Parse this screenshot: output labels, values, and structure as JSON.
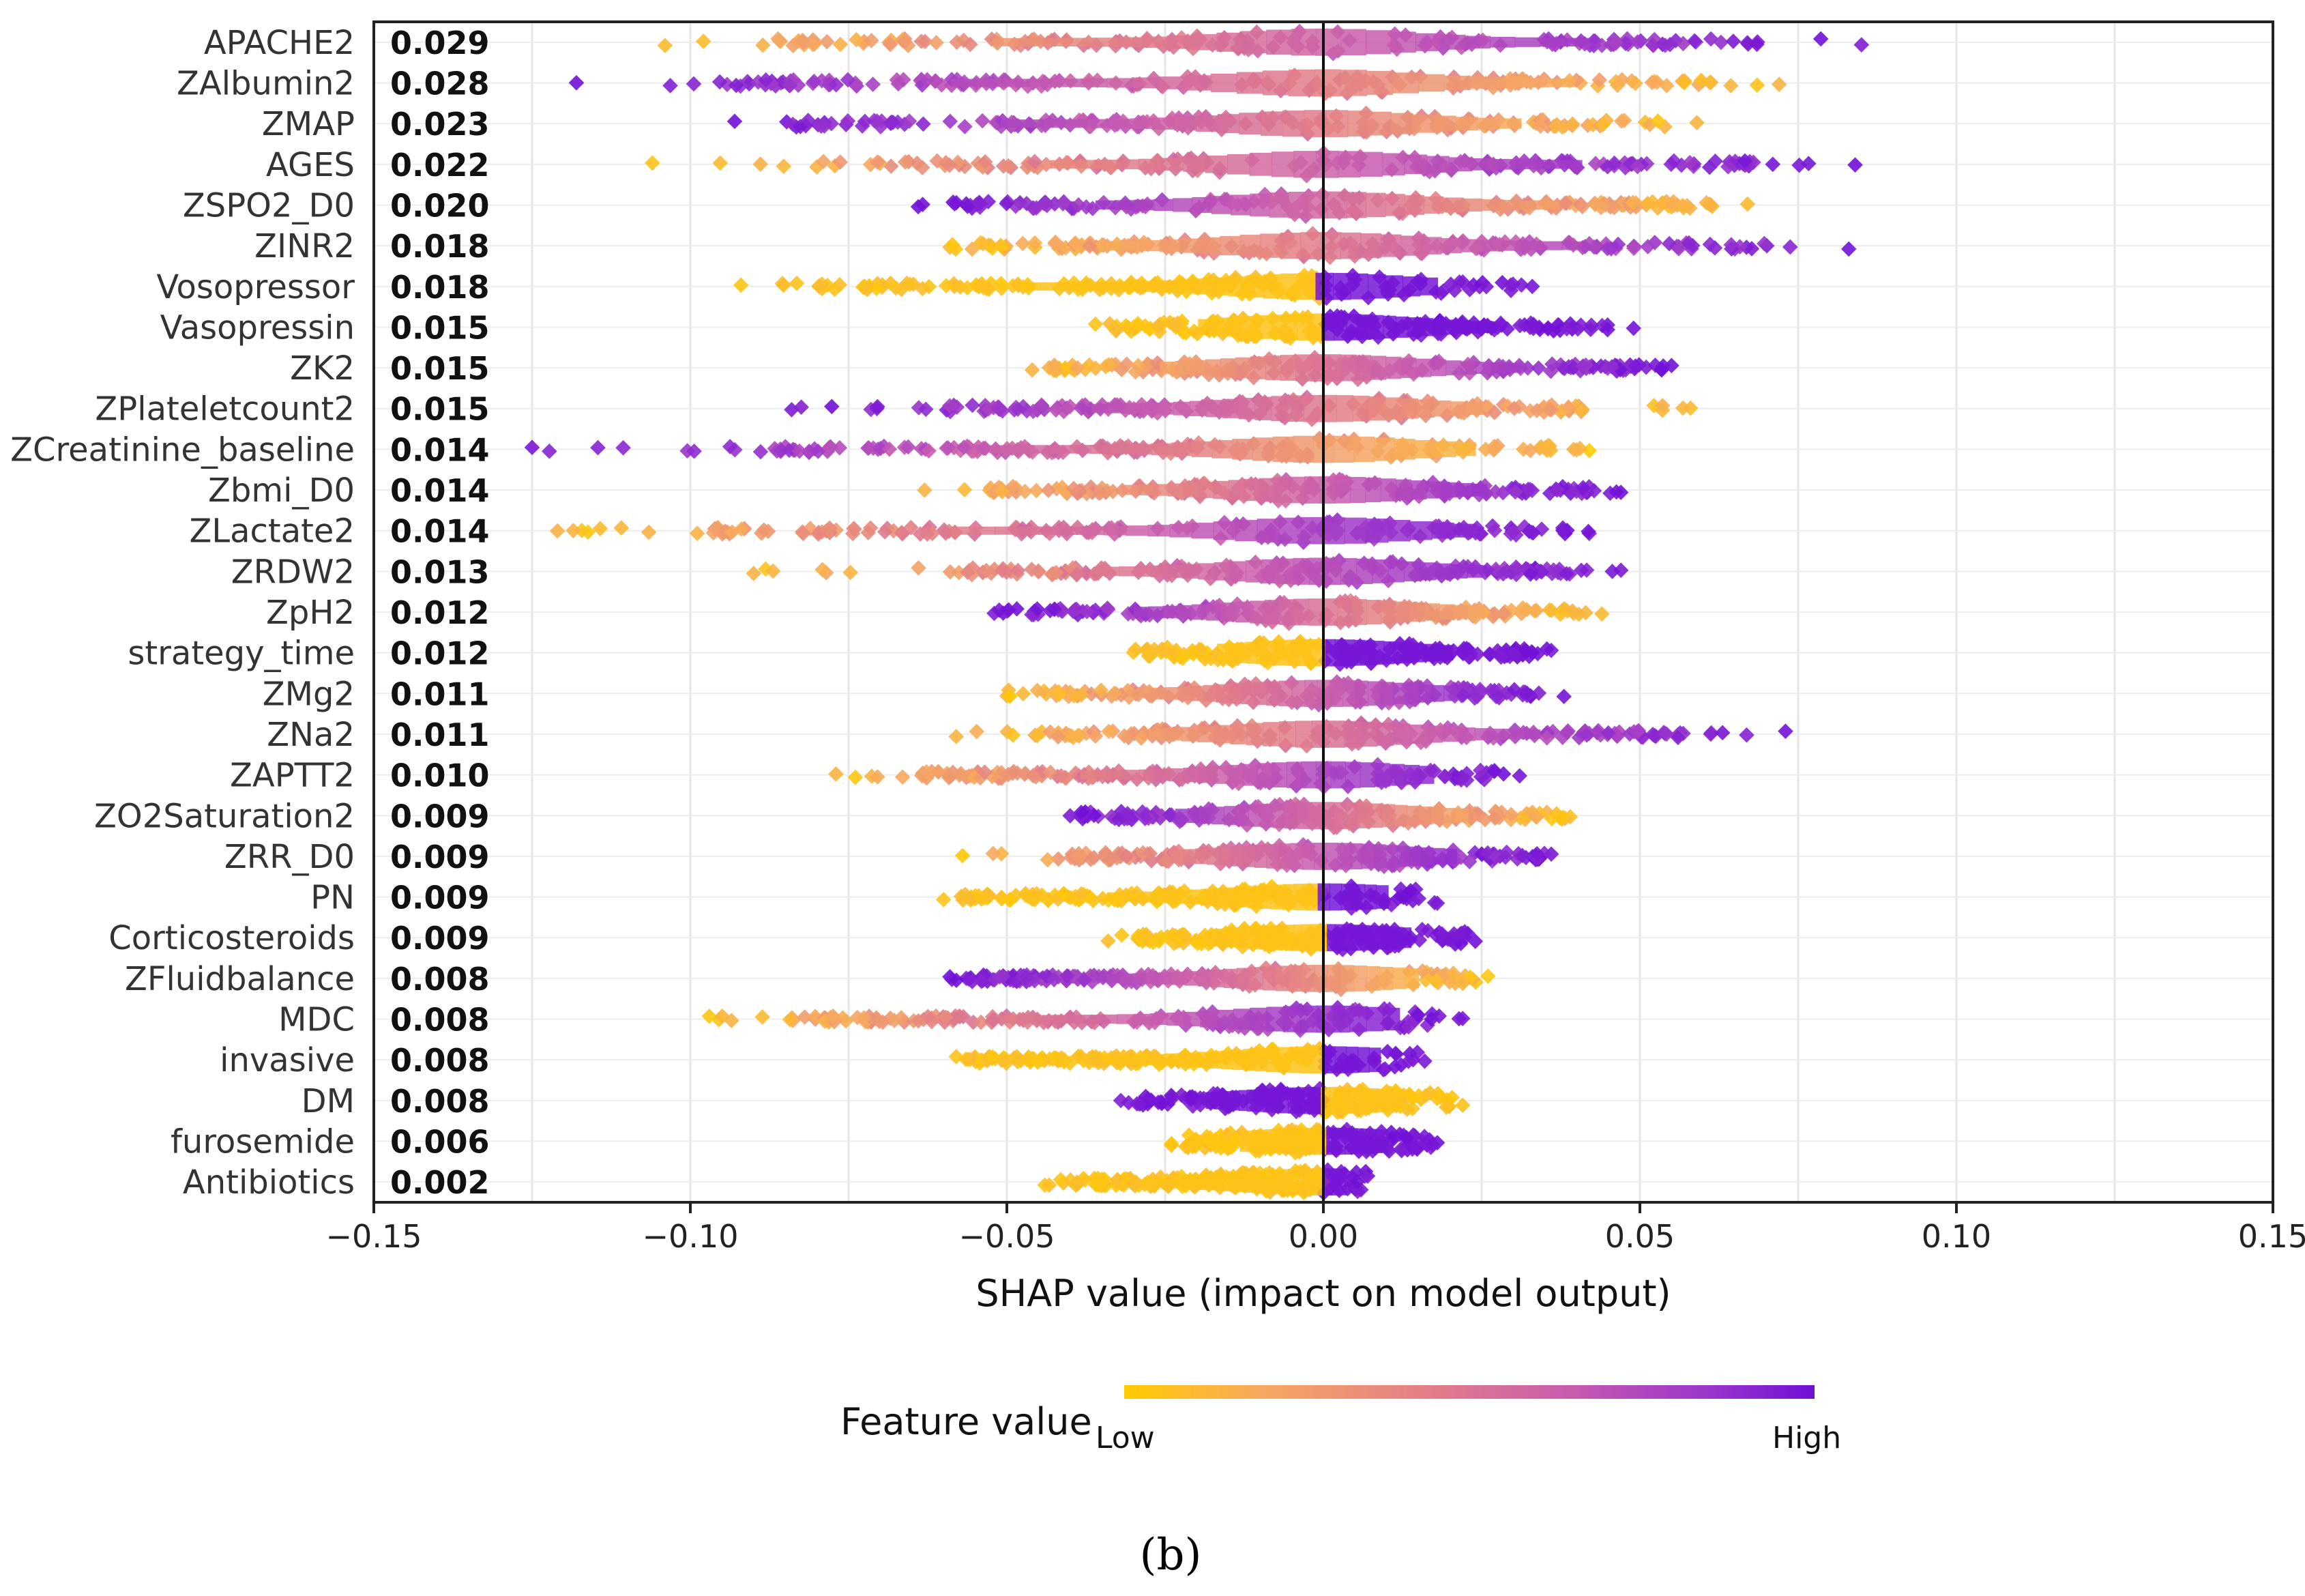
{
  "chart_data": {
    "type": "scatter",
    "subtype": "shap-beeswarm",
    "title": "",
    "xlabel": "SHAP value (impact on model output)",
    "ylabel": "",
    "xlim": [
      -0.15,
      0.15
    ],
    "xticks": [
      -0.15,
      -0.1,
      -0.05,
      0.0,
      0.05,
      0.1,
      0.15
    ],
    "xtick_labels": [
      "−0.15",
      "−0.10",
      "−0.05",
      "0.00",
      "0.05",
      "0.10",
      "0.15"
    ],
    "grid": true,
    "features": [
      {
        "name": "APACHE2",
        "importance": "0.029",
        "min": -0.104,
        "max": 0.085,
        "core": [
          -0.087,
          0.07
        ],
        "kind": "mixed",
        "low_side": "left"
      },
      {
        "name": "ZAlbumin2",
        "importance": "0.028",
        "min": -0.118,
        "max": 0.072,
        "core": [
          -0.098,
          0.066
        ],
        "kind": "mixed",
        "low_side": "right"
      },
      {
        "name": "ZMAP",
        "importance": "0.023",
        "min": -0.093,
        "max": 0.059,
        "core": [
          -0.085,
          0.052
        ],
        "kind": "mixed",
        "low_side": "right"
      },
      {
        "name": "AGES",
        "importance": "0.022",
        "min": -0.106,
        "max": 0.084,
        "core": [
          -0.072,
          0.068
        ],
        "kind": "mixed",
        "low_side": "left"
      },
      {
        "name": "ZSPO2_D0",
        "importance": "0.020",
        "min": -0.064,
        "max": 0.067,
        "core": [
          -0.06,
          0.062
        ],
        "kind": "mixed",
        "low_side": "right"
      },
      {
        "name": "ZINR2",
        "importance": "0.018",
        "min": -0.059,
        "max": 0.083,
        "core": [
          -0.059,
          0.068
        ],
        "kind": "mixed",
        "low_side": "left"
      },
      {
        "name": "Vosopressor",
        "importance": "0.018",
        "min": -0.092,
        "max": 0.033,
        "core": [
          -0.08,
          0.03
        ],
        "kind": "binary",
        "low_side": "left"
      },
      {
        "name": "Vasopressin",
        "importance": "0.015",
        "min": -0.036,
        "max": 0.049,
        "core": [
          -0.033,
          0.045
        ],
        "kind": "binary",
        "low_side": "left"
      },
      {
        "name": "ZK2",
        "importance": "0.015",
        "min": -0.046,
        "max": 0.055,
        "core": [
          -0.043,
          0.052
        ],
        "kind": "mixed",
        "low_side": "left"
      },
      {
        "name": "ZPlateletcount2",
        "importance": "0.015",
        "min": -0.084,
        "max": 0.058,
        "core": [
          -0.061,
          0.042
        ],
        "kind": "mixed",
        "low_side": "right"
      },
      {
        "name": "ZCreatinine_baseline",
        "importance": "0.014",
        "min": -0.125,
        "max": 0.042,
        "core": [
          -0.088,
          0.04
        ],
        "kind": "mixed",
        "low_side": "right"
      },
      {
        "name": "Zbmi_D0",
        "importance": "0.014",
        "min": -0.063,
        "max": 0.047,
        "core": [
          -0.053,
          0.043
        ],
        "kind": "mixed",
        "low_side": "left"
      },
      {
        "name": "ZLactate2",
        "importance": "0.014",
        "min": -0.121,
        "max": 0.042,
        "core": [
          -0.098,
          0.04
        ],
        "kind": "mixed",
        "low_side": "left"
      },
      {
        "name": "ZRDW2",
        "importance": "0.013",
        "min": -0.09,
        "max": 0.047,
        "core": [
          -0.058,
          0.042
        ],
        "kind": "mixed",
        "low_side": "left"
      },
      {
        "name": "ZpH2",
        "importance": "0.012",
        "min": -0.052,
        "max": 0.044,
        "core": [
          -0.05,
          0.042
        ],
        "kind": "mixed",
        "low_side": "right"
      },
      {
        "name": "strategy_time",
        "importance": "0.012",
        "min": -0.03,
        "max": 0.036,
        "core": [
          -0.028,
          0.034
        ],
        "kind": "binary",
        "low_side": "left"
      },
      {
        "name": "ZMg2",
        "importance": "0.011",
        "min": -0.05,
        "max": 0.038,
        "core": [
          -0.045,
          0.035
        ],
        "kind": "mixed",
        "low_side": "left"
      },
      {
        "name": "ZNa2",
        "importance": "0.011",
        "min": -0.058,
        "max": 0.073,
        "core": [
          -0.046,
          0.057
        ],
        "kind": "mixed",
        "low_side": "left"
      },
      {
        "name": "ZAPTT2",
        "importance": "0.010",
        "min": -0.077,
        "max": 0.031,
        "core": [
          -0.064,
          0.029
        ],
        "kind": "mixed",
        "low_side": "left"
      },
      {
        "name": "ZO2Saturation2",
        "importance": "0.009",
        "min": -0.04,
        "max": 0.039,
        "core": [
          -0.039,
          0.038
        ],
        "kind": "mixed",
        "low_side": "right"
      },
      {
        "name": "ZRR_D0",
        "importance": "0.009",
        "min": -0.057,
        "max": 0.036,
        "core": [
          -0.04,
          0.035
        ],
        "kind": "mixed",
        "low_side": "left"
      },
      {
        "name": "PN",
        "importance": "0.009",
        "min": -0.06,
        "max": 0.018,
        "core": [
          -0.057,
          0.017
        ],
        "kind": "binary",
        "low_side": "left"
      },
      {
        "name": "Corticosteroids",
        "importance": "0.009",
        "min": -0.034,
        "max": 0.024,
        "core": [
          -0.03,
          0.023
        ],
        "kind": "binary",
        "low_side": "left"
      },
      {
        "name": "ZFluidbalance",
        "importance": "0.008",
        "min": -0.059,
        "max": 0.026,
        "core": [
          -0.057,
          0.025
        ],
        "kind": "mixed",
        "low_side": "right"
      },
      {
        "name": "MDC",
        "importance": "0.008",
        "min": -0.097,
        "max": 0.022,
        "core": [
          -0.085,
          0.02
        ],
        "kind": "mixed",
        "low_side": "left"
      },
      {
        "name": "invasive",
        "importance": "0.008",
        "min": -0.058,
        "max": 0.016,
        "core": [
          -0.057,
          0.015
        ],
        "kind": "binary",
        "low_side": "left"
      },
      {
        "name": "DM",
        "importance": "0.008",
        "min": -0.032,
        "max": 0.022,
        "core": [
          -0.031,
          0.021
        ],
        "kind": "binary",
        "low_side": "right"
      },
      {
        "name": "furosemide",
        "importance": "0.006",
        "min": -0.024,
        "max": 0.018,
        "core": [
          -0.022,
          0.017
        ],
        "kind": "binary",
        "low_side": "left"
      },
      {
        "name": "Antibiotics",
        "importance": "0.002",
        "min": -0.044,
        "max": 0.007,
        "core": [
          -0.04,
          0.006
        ],
        "kind": "binary",
        "low_side": "left"
      }
    ],
    "legend": {
      "title": "Feature value",
      "low_label": "Low",
      "high_label": "High",
      "colormap": [
        "#FFCC00",
        "#F6A860",
        "#E07C8A",
        "#C65BB0",
        "#9A35CC",
        "#7010D8"
      ],
      "placement": "bottom-center"
    }
  },
  "caption": "(b)"
}
